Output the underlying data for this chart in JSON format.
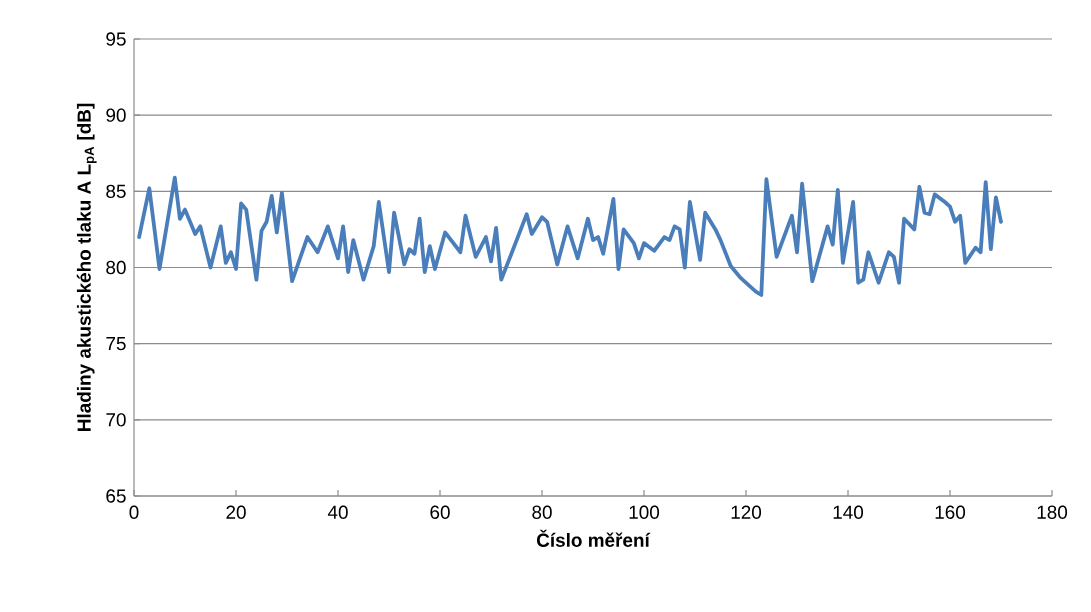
{
  "chart_data": {
    "type": "line",
    "xlabel": "Číslo měření",
    "ylabel": "Hladiny akustického tlaku A L$_{pA}$ [dB]",
    "xlim": [
      0,
      180
    ],
    "xticks": [
      0,
      20,
      40,
      60,
      80,
      100,
      120,
      140,
      160,
      180
    ],
    "ylim": [
      65,
      95
    ],
    "yticks": [
      65,
      70,
      75,
      80,
      85,
      90,
      95
    ],
    "grid": "y",
    "legend": false,
    "marker": "none",
    "line_style": "solid",
    "series": [
      {
        "color": "#4a7ebb",
        "x": [
          1,
          3,
          5,
          8,
          9,
          10,
          12,
          13,
          15,
          17,
          18,
          19,
          20,
          21,
          22,
          24,
          25,
          26,
          27,
          28,
          29,
          31,
          34,
          36,
          38,
          40,
          41,
          42,
          43,
          45,
          47,
          48,
          50,
          51,
          53,
          54,
          55,
          56,
          57,
          58,
          59,
          61,
          64,
          65,
          67,
          69,
          70,
          71,
          72,
          74,
          77,
          78,
          80,
          81,
          83,
          85,
          87,
          89,
          90,
          91,
          92,
          94,
          95,
          96,
          98,
          99,
          100,
          102,
          104,
          105,
          106,
          107,
          108,
          109,
          111,
          112,
          114,
          115,
          117,
          119,
          121,
          122,
          123,
          124,
          126,
          129,
          130,
          131,
          133,
          136,
          137,
          138,
          139,
          141,
          142,
          143,
          144,
          146,
          148,
          149,
          150,
          151,
          153,
          154,
          155,
          156,
          157,
          159,
          160,
          161,
          162,
          163,
          165,
          166,
          167,
          168,
          169,
          170
        ],
        "values": [
          82.0,
          85.2,
          79.9,
          85.9,
          83.2,
          83.8,
          82.2,
          82.7,
          80.0,
          82.7,
          80.3,
          81.0,
          79.9,
          84.2,
          83.8,
          79.2,
          82.4,
          83.0,
          84.7,
          82.3,
          84.9,
          79.1,
          82.0,
          81.0,
          82.7,
          80.6,
          82.7,
          79.7,
          81.8,
          79.2,
          81.4,
          84.3,
          79.7,
          83.6,
          80.2,
          81.2,
          80.9,
          83.2,
          79.7,
          81.4,
          79.9,
          82.3,
          81.0,
          83.4,
          80.7,
          82.0,
          80.4,
          82.6,
          79.2,
          80.9,
          83.5,
          82.2,
          83.3,
          83.0,
          80.2,
          82.7,
          80.6,
          83.2,
          81.8,
          82.0,
          80.9,
          84.5,
          79.9,
          82.5,
          81.6,
          80.6,
          81.6,
          81.1,
          82.0,
          81.8,
          82.7,
          82.5,
          80.0,
          84.3,
          80.5,
          83.6,
          82.5,
          81.8,
          80.1,
          79.3,
          78.7,
          78.4,
          78.2,
          85.8,
          80.7,
          83.4,
          81.0,
          85.5,
          79.1,
          82.7,
          81.5,
          85.1,
          80.3,
          84.3,
          79.0,
          79.2,
          81.0,
          79.0,
          81.0,
          80.7,
          79.0,
          83.2,
          82.5,
          85.3,
          83.6,
          83.5,
          84.8,
          84.3,
          84.0,
          83.0,
          83.4,
          80.3,
          81.3,
          81.0,
          85.6,
          81.2,
          84.6,
          83.0
        ]
      }
    ]
  }
}
